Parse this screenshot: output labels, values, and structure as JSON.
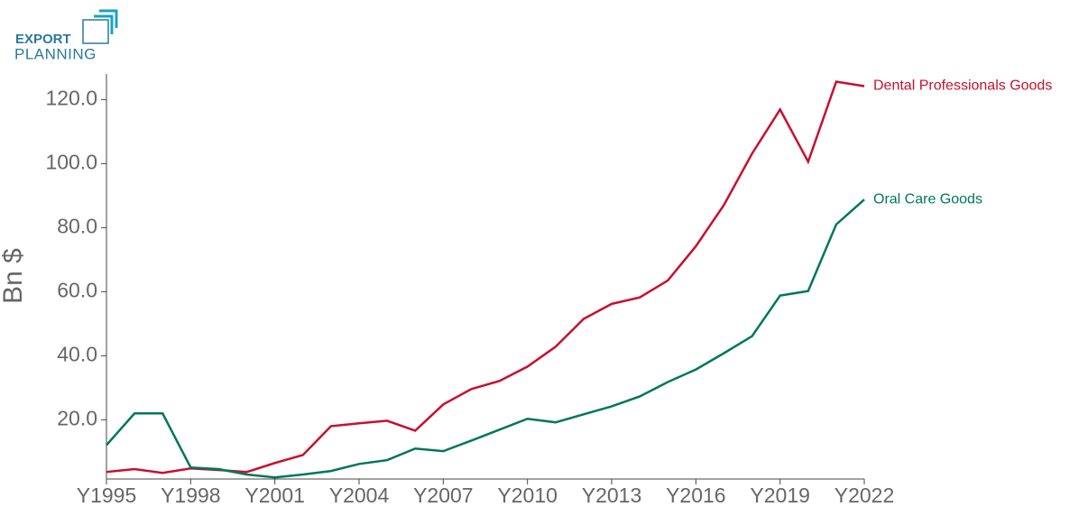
{
  "logo": {
    "line1": "EXPORT",
    "line2": "PLANNING"
  },
  "chart_data": {
    "type": "line",
    "y_label": "Bn $",
    "categories": [
      "Y1995",
      null,
      null,
      "Y1998",
      null,
      null,
      "Y2001",
      null,
      null,
      "Y2004",
      null,
      null,
      "Y2007",
      null,
      null,
      "Y2010",
      null,
      null,
      "Y2013",
      null,
      null,
      "Y2016",
      null,
      null,
      "Y2019",
      null,
      null,
      "Y2022"
    ],
    "series": [
      {
        "name": "Dental Professionals Goods",
        "color": "#c8102e",
        "values": [
          3.7,
          4.6,
          3.4,
          4.8,
          4.3,
          3.7,
          6.5,
          9.0,
          18.0,
          18.9,
          19.7,
          16.6,
          24.8,
          29.6,
          32.1,
          36.6,
          42.8,
          51.5,
          56.2,
          58.2,
          63.5,
          74.2,
          87.1,
          103.1,
          116.9,
          100.6,
          125.6,
          124.2
        ]
      },
      {
        "name": "Oral Care Goods",
        "color": "#00775a",
        "values": [
          12.1,
          22.0,
          22.0,
          5.1,
          4.6,
          2.9,
          2.0,
          2.9,
          4.0,
          6.2,
          7.4,
          11.0,
          10.2,
          13.5,
          16.9,
          20.3,
          19.2,
          21.7,
          24.2,
          27.3,
          31.8,
          35.7,
          40.8,
          46.1,
          58.8,
          60.2,
          81.0,
          88.8
        ]
      }
    ],
    "ylim": [
      1.5,
      128
    ],
    "yticks": [
      {
        "value": 20,
        "label": "20.0"
      },
      {
        "value": 40,
        "label": "40.0"
      },
      {
        "value": 60,
        "label": "60.0"
      },
      {
        "value": 80,
        "label": "80.0"
      },
      {
        "value": 100,
        "label": "100.0"
      },
      {
        "value": 120,
        "label": "120.0"
      }
    ],
    "grid": false
  }
}
